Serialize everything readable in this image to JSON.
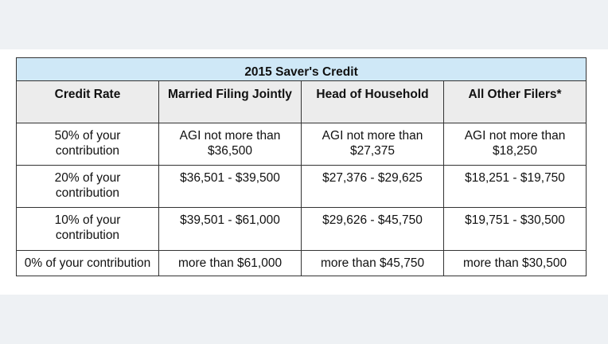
{
  "table": {
    "title": "2015 Saver's Credit",
    "columns": [
      "Credit Rate",
      "Married Filing Jointly",
      "Head of Household",
      "All Other Filers*"
    ],
    "rows": [
      [
        "50% of your contribution",
        "AGI not more than $36,500",
        "AGI not more than $27,375",
        "AGI not more than $18,250"
      ],
      [
        "20% of your contribution",
        "$36,501 - $39,500",
        "$27,376 - $29,625",
        "$18,251 - $19,750"
      ],
      [
        "10% of your contribution",
        "$39,501 - $61,000",
        "$29,626 - $45,750",
        "$19,751 - $30,500"
      ],
      [
        "0% of your contribution",
        "more than $61,000",
        "more than $45,750",
        "more than $30,500"
      ]
    ]
  },
  "colors": {
    "title_bg": "#cfe8f7",
    "header_bg": "#ececec",
    "band_bg": "#eef1f4",
    "border": "#333333"
  }
}
